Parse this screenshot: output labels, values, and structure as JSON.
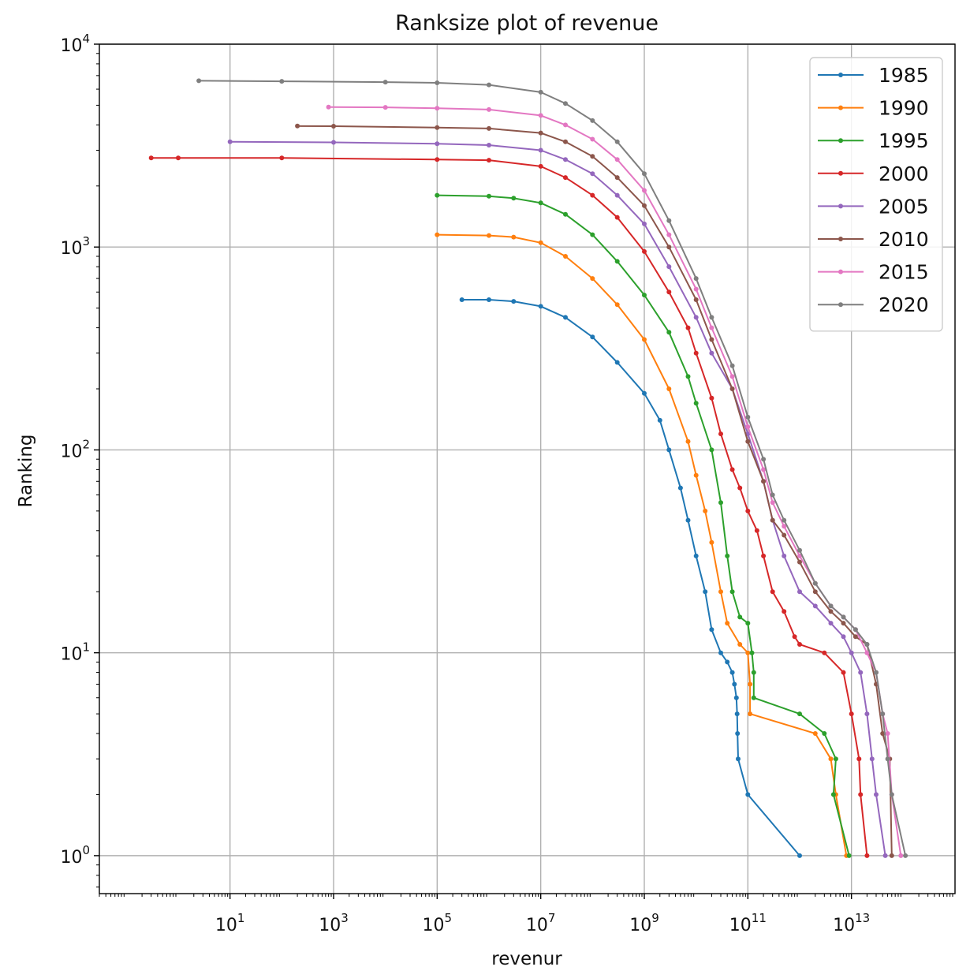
{
  "chart_data": {
    "type": "line",
    "title": "Ranksize plot of revenue",
    "xlabel": "revenur",
    "ylabel": "Ranking",
    "xscale": "log",
    "yscale": "log",
    "xlim": [
      0.03,
      1000000000000000
    ],
    "ylim": [
      0.65,
      10000
    ],
    "grid": true,
    "legend_position": "top-right",
    "x_ticks": [
      {
        "base": "10",
        "exp": "1",
        "value": 10
      },
      {
        "base": "10",
        "exp": "3",
        "value": 1000
      },
      {
        "base": "10",
        "exp": "5",
        "value": 100000
      },
      {
        "base": "10",
        "exp": "7",
        "value": 10000000
      },
      {
        "base": "10",
        "exp": "9",
        "value": 1000000000
      },
      {
        "base": "10",
        "exp": "11",
        "value": 100000000000
      },
      {
        "base": "10",
        "exp": "13",
        "value": 10000000000000
      }
    ],
    "y_ticks": [
      {
        "base": "10",
        "exp": "0",
        "value": 1
      },
      {
        "base": "10",
        "exp": "1",
        "value": 10
      },
      {
        "base": "10",
        "exp": "2",
        "value": 100
      },
      {
        "base": "10",
        "exp": "3",
        "value": 1000
      },
      {
        "base": "10",
        "exp": "4",
        "value": 10000
      }
    ],
    "series": [
      {
        "name": "1985",
        "color": "#1f77b4",
        "points": [
          [
            300000,
            550
          ],
          [
            1000000,
            550
          ],
          [
            3000000,
            540
          ],
          [
            10000000,
            510
          ],
          [
            30000000,
            450
          ],
          [
            100000000,
            360
          ],
          [
            300000000,
            270
          ],
          [
            1000000000,
            190
          ],
          [
            2000000000,
            140
          ],
          [
            3000000000,
            100
          ],
          [
            5000000000,
            65
          ],
          [
            7000000000,
            45
          ],
          [
            10000000000,
            30
          ],
          [
            15000000000,
            20
          ],
          [
            20000000000,
            13
          ],
          [
            30000000000,
            10
          ],
          [
            40000000000,
            9
          ],
          [
            50000000000,
            8
          ],
          [
            55000000000,
            7
          ],
          [
            60000000000,
            6
          ],
          [
            62000000000,
            5
          ],
          [
            63000000000,
            4
          ],
          [
            65000000000,
            3
          ],
          [
            100000000000,
            2
          ],
          [
            1000000000000,
            1
          ]
        ]
      },
      {
        "name": "1990",
        "color": "#ff7f0e",
        "points": [
          [
            100000,
            1150
          ],
          [
            1000000,
            1140
          ],
          [
            3000000,
            1120
          ],
          [
            10000000,
            1050
          ],
          [
            30000000,
            900
          ],
          [
            100000000,
            700
          ],
          [
            300000000,
            520
          ],
          [
            1000000000,
            350
          ],
          [
            3000000000,
            200
          ],
          [
            7000000000,
            110
          ],
          [
            10000000000,
            75
          ],
          [
            15000000000,
            50
          ],
          [
            20000000000,
            35
          ],
          [
            30000000000,
            20
          ],
          [
            40000000000,
            14
          ],
          [
            70000000000,
            11
          ],
          [
            100000000000,
            10
          ],
          [
            110000000000,
            7
          ],
          [
            110000000000,
            5
          ],
          [
            2000000000000,
            4
          ],
          [
            4000000000000,
            3
          ],
          [
            5000000000000,
            2
          ],
          [
            8000000000000,
            1
          ]
        ]
      },
      {
        "name": "1995",
        "color": "#2ca02c",
        "points": [
          [
            100000,
            1800
          ],
          [
            1000000,
            1780
          ],
          [
            3000000,
            1740
          ],
          [
            10000000,
            1650
          ],
          [
            30000000,
            1450
          ],
          [
            100000000,
            1150
          ],
          [
            300000000,
            850
          ],
          [
            1000000000,
            580
          ],
          [
            3000000000,
            380
          ],
          [
            7000000000,
            230
          ],
          [
            10000000000,
            170
          ],
          [
            20000000000,
            100
          ],
          [
            30000000000,
            55
          ],
          [
            40000000000,
            30
          ],
          [
            50000000000,
            20
          ],
          [
            70000000000,
            15
          ],
          [
            100000000000,
            14
          ],
          [
            120000000000,
            10
          ],
          [
            130000000000,
            8
          ],
          [
            130000000000,
            6
          ],
          [
            1000000000000,
            5
          ],
          [
            3000000000000,
            4
          ],
          [
            5000000000000,
            3
          ],
          [
            4500000000000,
            2
          ],
          [
            9000000000000,
            1
          ]
        ]
      },
      {
        "name": "2000",
        "color": "#d62728",
        "points": [
          [
            0.3,
            2750
          ],
          [
            1,
            2750
          ],
          [
            100,
            2750
          ],
          [
            100000,
            2700
          ],
          [
            1000000,
            2680
          ],
          [
            10000000,
            2500
          ],
          [
            30000000,
            2200
          ],
          [
            100000000,
            1800
          ],
          [
            300000000,
            1400
          ],
          [
            1000000000,
            950
          ],
          [
            3000000000,
            600
          ],
          [
            7000000000,
            400
          ],
          [
            10000000000,
            300
          ],
          [
            20000000000,
            180
          ],
          [
            30000000000,
            120
          ],
          [
            50000000000,
            80
          ],
          [
            70000000000,
            65
          ],
          [
            100000000000,
            50
          ],
          [
            150000000000,
            40
          ],
          [
            200000000000,
            30
          ],
          [
            300000000000,
            20
          ],
          [
            500000000000,
            16
          ],
          [
            800000000000,
            12
          ],
          [
            1000000000000,
            11
          ],
          [
            3000000000000,
            10
          ],
          [
            7000000000000,
            8
          ],
          [
            10000000000000,
            5
          ],
          [
            14000000000000,
            3
          ],
          [
            15000000000000,
            2
          ],
          [
            20000000000000,
            1
          ]
        ]
      },
      {
        "name": "2005",
        "color": "#9467bd",
        "points": [
          [
            10,
            3300
          ],
          [
            1000,
            3280
          ],
          [
            100000,
            3230
          ],
          [
            1000000,
            3180
          ],
          [
            10000000,
            3000
          ],
          [
            30000000,
            2700
          ],
          [
            100000000,
            2300
          ],
          [
            300000000,
            1800
          ],
          [
            1000000000,
            1300
          ],
          [
            3000000000,
            800
          ],
          [
            10000000000,
            450
          ],
          [
            20000000000,
            300
          ],
          [
            50000000000,
            200
          ],
          [
            100000000000,
            120
          ],
          [
            200000000000,
            70
          ],
          [
            300000000000,
            45
          ],
          [
            500000000000,
            30
          ],
          [
            1000000000000,
            20
          ],
          [
            2000000000000,
            17
          ],
          [
            4000000000000,
            14
          ],
          [
            7000000000000,
            12
          ],
          [
            10000000000000,
            10
          ],
          [
            15000000000000,
            8
          ],
          [
            20000000000000,
            5
          ],
          [
            25000000000000,
            3
          ],
          [
            30000000000000,
            2
          ],
          [
            45000000000000,
            1
          ]
        ]
      },
      {
        "name": "2010",
        "color": "#8c564b",
        "points": [
          [
            200,
            3950
          ],
          [
            1000,
            3940
          ],
          [
            100000,
            3880
          ],
          [
            1000000,
            3840
          ],
          [
            10000000,
            3650
          ],
          [
            30000000,
            3300
          ],
          [
            100000000,
            2800
          ],
          [
            300000000,
            2200
          ],
          [
            1000000000,
            1600
          ],
          [
            3000000000,
            1000
          ],
          [
            10000000000,
            550
          ],
          [
            20000000000,
            350
          ],
          [
            50000000000,
            200
          ],
          [
            100000000000,
            110
          ],
          [
            200000000000,
            70
          ],
          [
            300000000000,
            45
          ],
          [
            500000000000,
            38
          ],
          [
            1000000000000,
            28
          ],
          [
            2000000000000,
            20
          ],
          [
            4000000000000,
            16
          ],
          [
            7000000000000,
            14
          ],
          [
            12000000000000,
            12
          ],
          [
            20000000000000,
            11
          ],
          [
            30000000000000,
            7
          ],
          [
            40000000000000,
            4
          ],
          [
            55000000000000,
            3
          ],
          [
            60000000000000,
            1
          ]
        ]
      },
      {
        "name": "2015",
        "color": "#e377c2",
        "points": [
          [
            800,
            4900
          ],
          [
            10000,
            4880
          ],
          [
            100000,
            4830
          ],
          [
            1000000,
            4760
          ],
          [
            10000000,
            4450
          ],
          [
            30000000,
            4000
          ],
          [
            100000000,
            3400
          ],
          [
            300000000,
            2700
          ],
          [
            1000000000,
            1900
          ],
          [
            3000000000,
            1150
          ],
          [
            10000000000,
            620
          ],
          [
            20000000000,
            400
          ],
          [
            50000000000,
            230
          ],
          [
            100000000000,
            130
          ],
          [
            200000000000,
            80
          ],
          [
            300000000000,
            55
          ],
          [
            500000000000,
            42
          ],
          [
            1000000000000,
            30
          ],
          [
            2000000000000,
            22
          ],
          [
            4000000000000,
            17
          ],
          [
            7000000000000,
            15
          ],
          [
            12000000000000,
            13
          ],
          [
            20000000000000,
            10
          ],
          [
            30000000000000,
            8
          ],
          [
            40000000000000,
            5
          ],
          [
            50000000000000,
            4
          ],
          [
            60000000000000,
            2
          ],
          [
            90000000000000,
            1
          ]
        ]
      },
      {
        "name": "2020",
        "color": "#7f7f7f",
        "points": [
          [
            2.5,
            6600
          ],
          [
            100,
            6560
          ],
          [
            10000,
            6500
          ],
          [
            100000,
            6450
          ],
          [
            1000000,
            6300
          ],
          [
            10000000,
            5800
          ],
          [
            30000000,
            5100
          ],
          [
            100000000,
            4200
          ],
          [
            300000000,
            3300
          ],
          [
            1000000000,
            2300
          ],
          [
            3000000000,
            1350
          ],
          [
            10000000000,
            700
          ],
          [
            20000000000,
            450
          ],
          [
            50000000000,
            260
          ],
          [
            100000000000,
            145
          ],
          [
            200000000000,
            90
          ],
          [
            300000000000,
            60
          ],
          [
            500000000000,
            45
          ],
          [
            1000000000000,
            32
          ],
          [
            2000000000000,
            22
          ],
          [
            4000000000000,
            17
          ],
          [
            7000000000000,
            15
          ],
          [
            12000000000000,
            13
          ],
          [
            20000000000000,
            11
          ],
          [
            30000000000000,
            8
          ],
          [
            40000000000000,
            5
          ],
          [
            50000000000000,
            3
          ],
          [
            60000000000000,
            2
          ],
          [
            110000000000000,
            1
          ]
        ]
      }
    ]
  }
}
